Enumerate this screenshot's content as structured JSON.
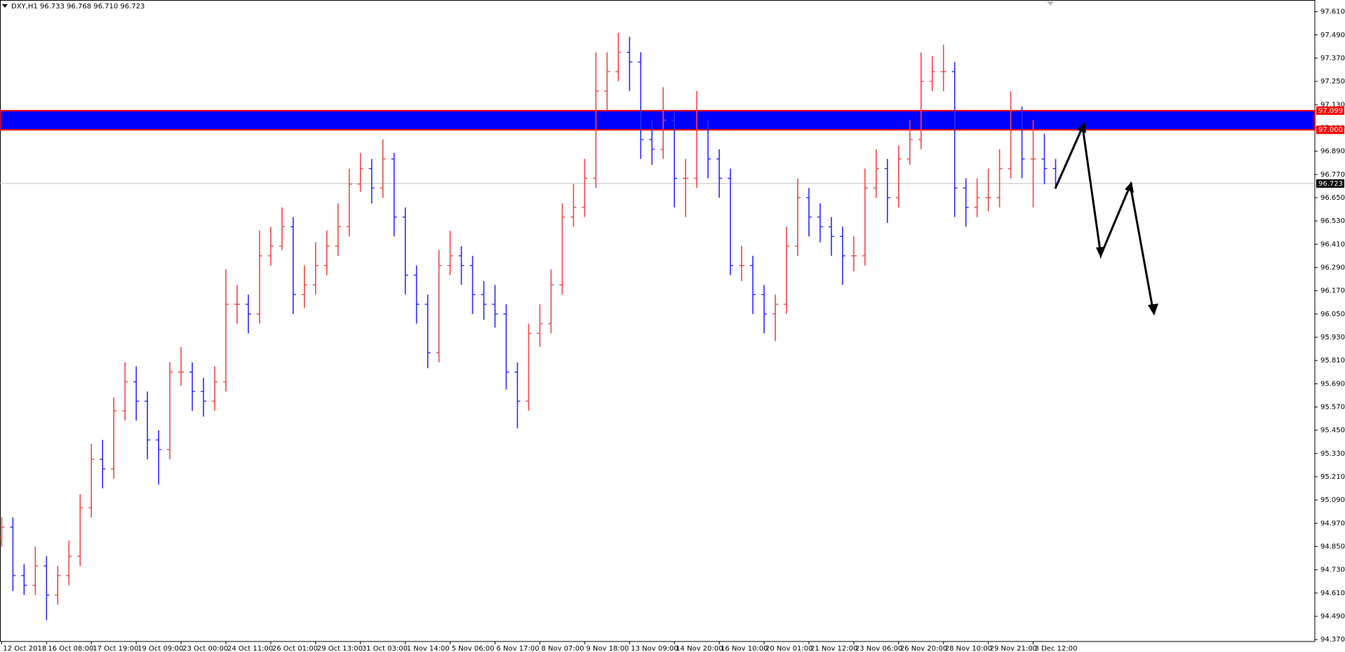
{
  "chart_data": {
    "type": "ohlc",
    "title": "DXY,H1  96.733 96.768 96.710 96.723",
    "categories": [
      "12 Oct 2018",
      null,
      null,
      null,
      "16 Oct 08:00",
      null,
      null,
      null,
      "17 Oct 19:00",
      null,
      null,
      null,
      "19 Oct 09:00",
      null,
      null,
      null,
      "23 Oct 00:00",
      null,
      null,
      null,
      "24 Oct 11:00",
      null,
      null,
      null,
      "26 Oct 01:00",
      null,
      null,
      null,
      "29 Oct 13:00",
      null,
      null,
      null,
      "31 Oct 03:00",
      null,
      null,
      null,
      "1 Nov 14:00",
      null,
      null,
      null,
      "5 Nov 06:00",
      null,
      null,
      null,
      "6 Nov 17:00",
      null,
      null,
      null,
      "8 Nov 07:00",
      null,
      null,
      null,
      "9 Nov 18:00",
      null,
      null,
      null,
      "13 Nov 09:00",
      null,
      null,
      null,
      "14 Nov 20:00",
      null,
      null,
      null,
      "16 Nov 10:00",
      null,
      null,
      null,
      "20 Nov 01:00",
      null,
      null,
      null,
      "21 Nov 12:00",
      null,
      null,
      null,
      "23 Nov 06:00",
      null,
      null,
      null,
      "26 Nov 20:00",
      null,
      null,
      null,
      "28 Nov 10:00",
      null,
      null,
      null,
      "29 Nov 21:00",
      null,
      null,
      null,
      "3 Dec 12:00",
      null,
      null
    ],
    "open": [
      94.9,
      94.95,
      94.7,
      94.65,
      94.75,
      94.6,
      94.7,
      94.8,
      95.05,
      95.3,
      95.25,
      95.55,
      95.7,
      95.6,
      95.4,
      95.35,
      95.75,
      95.75,
      95.65,
      95.6,
      95.7,
      96.1,
      96.1,
      96.05,
      96.35,
      96.4,
      96.5,
      96.15,
      96.2,
      96.3,
      96.4,
      96.5,
      96.72,
      96.8,
      96.7,
      96.85,
      96.55,
      96.25,
      96.1,
      95.85,
      96.3,
      96.35,
      96.3,
      96.15,
      96.1,
      96.05,
      95.75,
      95.6,
      95.95,
      96.0,
      96.2,
      96.55,
      96.6,
      96.75,
      97.2,
      97.3,
      97.4,
      97.35,
      96.95,
      96.9,
      97.05,
      96.75,
      96.75,
      97.0,
      96.85,
      96.75,
      96.3,
      96.3,
      96.15,
      96.05,
      96.1,
      96.4,
      96.65,
      96.55,
      96.5,
      96.45,
      96.35,
      96.35,
      96.7,
      96.8,
      96.65,
      96.85,
      96.95,
      97.25,
      97.3,
      97.3,
      96.7,
      96.6,
      96.65,
      96.65,
      96.8,
      97.1,
      96.85,
      96.85,
      96.8
    ],
    "high": [
      95.0,
      95.0,
      94.76,
      94.85,
      94.8,
      94.75,
      94.88,
      95.12,
      95.38,
      95.4,
      95.62,
      95.8,
      95.78,
      95.65,
      95.45,
      95.8,
      95.88,
      95.8,
      95.72,
      95.78,
      96.28,
      96.2,
      96.15,
      96.48,
      96.5,
      96.6,
      96.55,
      96.3,
      96.42,
      96.48,
      96.62,
      96.8,
      96.88,
      96.85,
      96.95,
      96.88,
      96.6,
      96.3,
      96.15,
      96.38,
      96.48,
      96.4,
      96.35,
      96.22,
      96.2,
      96.1,
      95.8,
      96.0,
      96.1,
      96.28,
      96.62,
      96.72,
      96.85,
      97.4,
      97.4,
      97.5,
      97.48,
      97.4,
      97.05,
      97.22,
      97.1,
      96.85,
      97.2,
      97.05,
      96.9,
      96.8,
      96.4,
      96.35,
      96.2,
      96.15,
      96.5,
      96.75,
      96.7,
      96.62,
      96.55,
      96.5,
      96.45,
      96.8,
      96.9,
      96.85,
      96.92,
      97.05,
      97.4,
      97.38,
      97.44,
      97.35,
      96.75,
      96.75,
      96.8,
      96.9,
      97.2,
      97.12,
      97.05,
      96.98,
      96.85
    ],
    "low": [
      94.85,
      94.62,
      94.6,
      94.6,
      94.47,
      94.55,
      94.65,
      94.75,
      95.0,
      95.15,
      95.2,
      95.5,
      95.5,
      95.3,
      95.17,
      95.3,
      95.68,
      95.55,
      95.52,
      95.55,
      95.65,
      96.0,
      95.95,
      96.0,
      96.3,
      96.38,
      96.05,
      96.08,
      96.15,
      96.25,
      96.35,
      96.45,
      96.68,
      96.62,
      96.65,
      96.45,
      96.15,
      96.0,
      95.77,
      95.8,
      96.25,
      96.2,
      96.05,
      96.02,
      95.98,
      95.66,
      95.46,
      95.55,
      95.88,
      95.95,
      96.15,
      96.5,
      96.55,
      96.7,
      97.1,
      97.25,
      97.2,
      96.85,
      96.82,
      96.85,
      96.6,
      96.55,
      96.7,
      96.75,
      96.65,
      96.25,
      96.22,
      96.05,
      95.95,
      95.91,
      96.05,
      96.35,
      96.45,
      96.42,
      96.35,
      96.2,
      96.27,
      96.3,
      96.65,
      96.52,
      96.6,
      96.82,
      96.9,
      97.2,
      97.2,
      96.55,
      96.5,
      96.55,
      96.58,
      96.6,
      96.75,
      96.75,
      96.6,
      96.72,
      96.71
    ],
    "close": [
      94.95,
      94.7,
      94.65,
      94.75,
      94.6,
      94.7,
      94.8,
      95.05,
      95.3,
      95.25,
      95.55,
      95.7,
      95.6,
      95.4,
      95.35,
      95.75,
      95.75,
      95.65,
      95.6,
      95.7,
      96.1,
      96.1,
      96.05,
      96.35,
      96.4,
      96.5,
      96.15,
      96.2,
      96.3,
      96.4,
      96.5,
      96.72,
      96.8,
      96.7,
      96.85,
      96.55,
      96.25,
      96.1,
      95.85,
      96.3,
      96.35,
      96.3,
      96.15,
      96.1,
      96.05,
      95.75,
      95.6,
      95.95,
      96.0,
      96.2,
      96.55,
      96.6,
      96.75,
      97.2,
      97.3,
      97.4,
      97.35,
      96.95,
      96.9,
      97.05,
      96.75,
      96.75,
      97.0,
      96.85,
      96.75,
      96.3,
      96.3,
      96.15,
      96.05,
      96.1,
      96.4,
      96.65,
      96.55,
      96.5,
      96.45,
      96.35,
      96.35,
      96.7,
      96.8,
      96.65,
      96.85,
      96.95,
      97.25,
      97.3,
      97.3,
      96.7,
      96.6,
      96.65,
      96.65,
      96.8,
      97.1,
      96.85,
      96.85,
      96.8,
      96.723
    ],
    "up_color": "#f04848",
    "down_color": "#2a2aff",
    "ylim": [
      94.36,
      97.67
    ],
    "yticks": [
      {
        "value": 94.37,
        "label": "94.370"
      },
      {
        "value": 94.49,
        "label": "94.490"
      },
      {
        "value": 94.61,
        "label": "94.610"
      },
      {
        "value": 94.73,
        "label": "94.730"
      },
      {
        "value": 94.85,
        "label": "94.850"
      },
      {
        "value": 94.97,
        "label": "94.970"
      },
      {
        "value": 95.09,
        "label": "95.090"
      },
      {
        "value": 95.21,
        "label": "95.210"
      },
      {
        "value": 95.33,
        "label": "95.330"
      },
      {
        "value": 95.45,
        "label": "95.450"
      },
      {
        "value": 95.57,
        "label": "95.570"
      },
      {
        "value": 95.69,
        "label": "95.690"
      },
      {
        "value": 95.81,
        "label": "95.810"
      },
      {
        "value": 95.93,
        "label": "95.930"
      },
      {
        "value": 96.05,
        "label": "96.050"
      },
      {
        "value": 96.17,
        "label": "96.170"
      },
      {
        "value": 96.29,
        "label": "96.290"
      },
      {
        "value": 96.41,
        "label": "96.410"
      },
      {
        "value": 96.53,
        "label": "96.530"
      },
      {
        "value": 96.65,
        "label": "96.650"
      },
      {
        "value": 96.77,
        "label": "96.770"
      },
      {
        "value": 96.89,
        "label": "96.890"
      },
      {
        "value": 97.01,
        "label": "97.010"
      },
      {
        "value": 97.13,
        "label": "97.130"
      },
      {
        "value": 97.25,
        "label": "97.250"
      },
      {
        "value": 97.37,
        "label": "97.370"
      },
      {
        "value": 97.49,
        "label": "97.490"
      },
      {
        "value": 97.61,
        "label": "97.610"
      }
    ],
    "zone": {
      "low": {
        "value": 97.0,
        "label": "97.000"
      },
      "high": 97.099,
      "color": "#0000ff",
      "border_color": "#ff0000"
    },
    "last_price": 96.723
  }
}
